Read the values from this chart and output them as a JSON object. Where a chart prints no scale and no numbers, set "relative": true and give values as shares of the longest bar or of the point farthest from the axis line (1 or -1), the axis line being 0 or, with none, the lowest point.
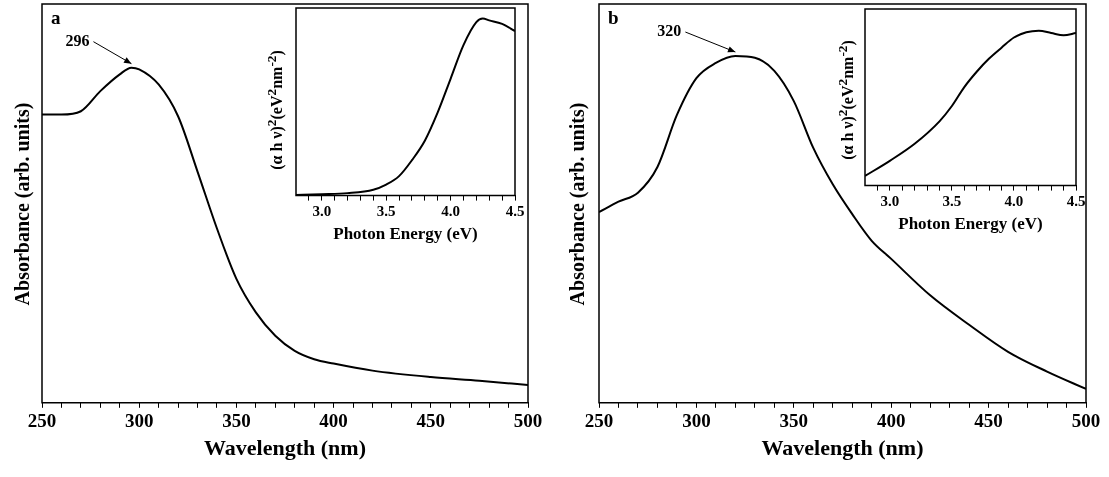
{
  "chart_data": [
    {
      "type": "line",
      "title": "a",
      "xlabel": "Wavelength (nm)",
      "ylabel": "Absorbance (arb. units)",
      "relative": true,
      "xlim": [
        250,
        500
      ],
      "xticks": [
        250,
        {
          "value": 260,
          "label": null
        },
        {
          "value": 270,
          "label": null
        },
        {
          "value": 280,
          "label": null
        },
        {
          "value": 290,
          "label": null
        },
        300,
        {
          "value": 310,
          "label": null
        },
        {
          "value": 320,
          "label": null
        },
        {
          "value": 330,
          "label": null
        },
        {
          "value": 340,
          "label": null
        },
        350,
        {
          "value": 360,
          "label": null
        },
        {
          "value": 370,
          "label": null
        },
        {
          "value": 380,
          "label": null
        },
        {
          "value": 390,
          "label": null
        },
        400,
        {
          "value": 410,
          "label": null
        },
        {
          "value": 420,
          "label": null
        },
        {
          "value": 430,
          "label": null
        },
        {
          "value": 440,
          "label": null
        },
        450,
        {
          "value": 460,
          "label": null
        },
        {
          "value": 470,
          "label": null
        },
        {
          "value": 480,
          "label": null
        },
        {
          "value": 490,
          "label": null
        },
        500
      ],
      "annotations": [
        {
          "text": "296",
          "x": 296,
          "y": 1
        }
      ],
      "x": [
        250,
        260,
        270,
        280,
        290,
        296,
        300,
        310,
        320,
        330,
        340,
        350,
        360,
        370,
        380,
        390,
        400,
        420,
        450,
        475,
        500
      ],
      "series": [
        {
          "color": "#000000",
          "values": [
            0.86,
            0.86,
            0.87,
            0.93,
            0.98,
            1,
            0.995,
            0.95,
            0.855,
            0.69,
            0.52,
            0.37,
            0.27,
            0.2,
            0.155,
            0.13,
            0.117,
            0.096,
            0.077,
            0.066,
            0.053
          ]
        }
      ]
    },
    {
      "type": "line",
      "xlabel": "Photon Energy (eV)",
      "ylabel": "(α h ν)$^{2}$(eV$^{2}$nm$^{-2}$)",
      "relative": true,
      "xlim": [
        2.8,
        4.5
      ],
      "xticks": [
        {
          "value": 2.9,
          "label": null
        },
        {
          "value": 3,
          "label": "3.0"
        },
        {
          "value": 3.1,
          "label": null
        },
        {
          "value": 3.2,
          "label": null
        },
        {
          "value": 3.3,
          "label": null
        },
        {
          "value": 3.4,
          "label": null
        },
        3.5,
        {
          "value": 3.6,
          "label": null
        },
        {
          "value": 3.7,
          "label": null
        },
        {
          "value": 3.8,
          "label": null
        },
        {
          "value": 3.9,
          "label": null
        },
        {
          "value": 4,
          "label": "4.0"
        },
        {
          "value": 4.1,
          "label": null
        },
        {
          "value": 4.2,
          "label": null
        },
        {
          "value": 4.3,
          "label": null
        },
        {
          "value": 4.4,
          "label": null
        },
        4.5
      ],
      "x": [
        2.8,
        3.0,
        3.2,
        3.4,
        3.5,
        3.6,
        3.7,
        3.8,
        3.9,
        4.0,
        4.1,
        4.2,
        4.25,
        4.3,
        4.4,
        4.5
      ],
      "series": [
        {
          "color": "#000000",
          "values": [
            0.004,
            0.008,
            0.014,
            0.033,
            0.062,
            0.11,
            0.2,
            0.31,
            0.47,
            0.66,
            0.85,
            0.98,
            1,
            0.99,
            0.97,
            0.93
          ]
        }
      ]
    },
    {
      "type": "line",
      "title": "b",
      "xlabel": "Wavelength (nm)",
      "ylabel": "Absorbance (arb. units)",
      "relative": true,
      "xlim": [
        250,
        500
      ],
      "xticks": [
        250,
        {
          "value": 260,
          "label": null
        },
        {
          "value": 270,
          "label": null
        },
        {
          "value": 280,
          "label": null
        },
        {
          "value": 290,
          "label": null
        },
        300,
        {
          "value": 310,
          "label": null
        },
        {
          "value": 320,
          "label": null
        },
        {
          "value": 330,
          "label": null
        },
        {
          "value": 340,
          "label": null
        },
        350,
        {
          "value": 360,
          "label": null
        },
        {
          "value": 370,
          "label": null
        },
        {
          "value": 380,
          "label": null
        },
        {
          "value": 390,
          "label": null
        },
        400,
        {
          "value": 410,
          "label": null
        },
        {
          "value": 420,
          "label": null
        },
        {
          "value": 430,
          "label": null
        },
        {
          "value": 440,
          "label": null
        },
        450,
        {
          "value": 460,
          "label": null
        },
        {
          "value": 470,
          "label": null
        },
        {
          "value": 480,
          "label": null
        },
        {
          "value": 490,
          "label": null
        },
        500
      ],
      "annotations": [
        {
          "text": "320",
          "x": 320,
          "y": 1
        }
      ],
      "x": [
        250,
        260,
        270,
        280,
        290,
        300,
        310,
        320,
        330,
        340,
        350,
        360,
        370,
        380,
        390,
        400,
        420,
        440,
        460,
        480,
        500
      ],
      "series": [
        {
          "color": "#000000",
          "values": [
            0.55,
            0.58,
            0.606,
            0.68,
            0.83,
            0.936,
            0.98,
            1,
            0.995,
            0.957,
            0.87,
            0.735,
            0.63,
            0.544,
            0.467,
            0.415,
            0.31,
            0.225,
            0.147,
            0.09,
            0.04
          ]
        }
      ]
    },
    {
      "type": "line",
      "xlabel": "Photon Energy (eV)",
      "ylabel": "(α h ν)$^{2}$(eV$^{2}$nm$^{-2}$)",
      "relative": true,
      "xlim": [
        2.8,
        4.5
      ],
      "xticks": [
        {
          "value": 2.9,
          "label": null
        },
        {
          "value": 3,
          "label": "3.0"
        },
        {
          "value": 3.1,
          "label": null
        },
        {
          "value": 3.2,
          "label": null
        },
        {
          "value": 3.3,
          "label": null
        },
        {
          "value": 3.4,
          "label": null
        },
        3.5,
        {
          "value": 3.6,
          "label": null
        },
        {
          "value": 3.7,
          "label": null
        },
        {
          "value": 3.8,
          "label": null
        },
        {
          "value": 3.9,
          "label": null
        },
        {
          "value": 4,
          "label": "4.0"
        },
        {
          "value": 4.1,
          "label": null
        },
        {
          "value": 4.2,
          "label": null
        },
        {
          "value": 4.3,
          "label": null
        },
        {
          "value": 4.4,
          "label": null
        },
        4.5
      ],
      "x": [
        2.8,
        3.0,
        3.2,
        3.4,
        3.5,
        3.6,
        3.7,
        3.8,
        3.9,
        4.0,
        4.1,
        4.2,
        4.3,
        4.4,
        4.5
      ],
      "series": [
        {
          "color": "#000000",
          "values": [
            0.062,
            0.16,
            0.27,
            0.415,
            0.514,
            0.636,
            0.735,
            0.82,
            0.89,
            0.956,
            0.99,
            1,
            0.985,
            0.97,
            0.985
          ]
        }
      ]
    }
  ]
}
